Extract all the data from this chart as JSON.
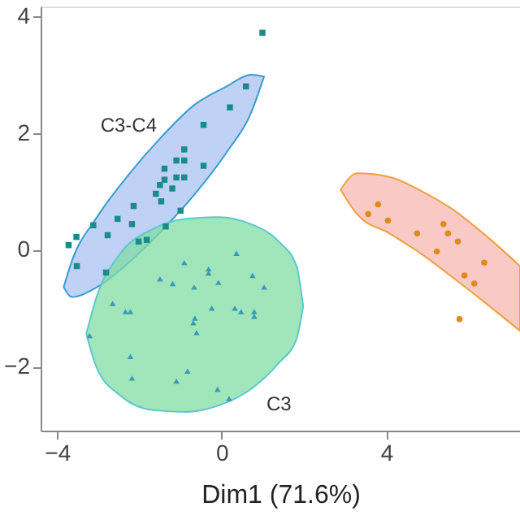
{
  "chart_data": {
    "type": "scatter",
    "xlabel": "Dim1 (71.6%)",
    "xlim": [
      -4.4,
      7.25
    ],
    "ylim": [
      -3.1,
      4.17
    ],
    "xticks": [
      -4,
      0,
      4
    ],
    "yticks": [
      -2,
      0,
      2,
      4
    ],
    "grid": false,
    "annotations": [
      "C3-C4",
      "C3"
    ],
    "series": [
      {
        "marker": "square",
        "color": "#1b8a8a",
        "x": [
          0.99,
          0.59,
          0.2,
          -0.44,
          -0.91,
          -0.44,
          -0.91,
          -1.1,
          -1.39,
          -1.1,
          -0.91,
          -1.5,
          -1.2,
          -1.39,
          -1.6,
          -1.47,
          -1.0,
          -2.14,
          -2.53,
          -2.18,
          -2.77,
          -3.12,
          -2.02,
          -1.82,
          -1.36,
          -3.53,
          -3.72,
          -3.52,
          -2.81
        ],
        "values": [
          3.72,
          2.8,
          2.44,
          2.14,
          1.72,
          1.44,
          1.53,
          1.53,
          1.39,
          1.24,
          1.24,
          1.11,
          1.05,
          1.2,
          0.96,
          0.83,
          0.67,
          0.75,
          0.53,
          0.44,
          0.25,
          0.42,
          0.14,
          0.17,
          0.4,
          0.22,
          0.08,
          -0.28,
          -0.39
        ]
      },
      {
        "marker": "triangle",
        "color": "#3a9ab5",
        "x": [
          -0.91,
          0.36,
          -0.32,
          -0.32,
          0.75,
          -1.5,
          -1.19,
          -0.67,
          -0.08,
          1.03,
          -2.65,
          -2.34,
          -2.22,
          -0.24,
          0.32,
          0.47,
          0.79,
          0.79,
          -0.65,
          -0.69,
          -0.61,
          -3.21,
          -2.22,
          -2.18,
          -1.1,
          -0.83,
          -0.1,
          0.18
        ],
        "values": [
          -0.22,
          -0.06,
          -0.33,
          -0.4,
          -0.44,
          -0.5,
          -0.58,
          -0.64,
          -0.56,
          -0.64,
          -0.92,
          -1.06,
          -1.06,
          -1.0,
          -1.0,
          -1.06,
          -1.06,
          -1.14,
          -1.17,
          -1.25,
          -1.42,
          -1.47,
          -1.83,
          -2.2,
          -2.25,
          -2.08,
          -2.39,
          -2.55
        ]
      },
      {
        "marker": "circle",
        "color": "#e08a1a",
        "x": [
          3.8,
          3.56,
          4.04,
          4.75,
          5.39,
          5.5,
          5.74,
          5.23,
          6.38,
          5.9,
          6.14,
          5.78
        ],
        "values": [
          0.78,
          0.61,
          0.5,
          0.28,
          0.44,
          0.28,
          0.14,
          -0.03,
          -0.22,
          -0.44,
          -0.58,
          -1.19
        ]
      }
    ]
  }
}
